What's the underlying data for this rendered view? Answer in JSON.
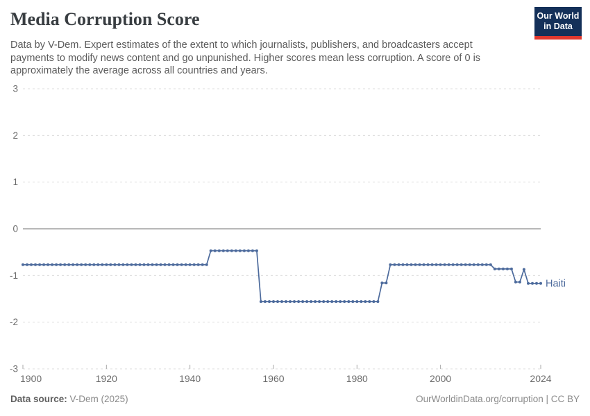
{
  "header": {
    "title": "Media Corruption Score",
    "subtitle": "Data by V-Dem. Expert estimates of the extent to which journalists, publishers, and broadcasters accept payments to modify news content and go unpunished. Higher scores mean less corruption. A score of 0 is approximately the average across all countries and years.",
    "logo": {
      "line1": "Our World",
      "line2": "in Data",
      "bg_color": "#143059",
      "bar_color": "#e0382e"
    }
  },
  "chart_data": {
    "type": "line",
    "title": "Media Corruption Score",
    "xlabel": "",
    "ylabel": "",
    "x_axis": {
      "min": 1900,
      "max": 2024,
      "ticks": [
        1900,
        1920,
        1940,
        1960,
        1980,
        2000,
        2024
      ]
    },
    "y_axis": {
      "min": -3,
      "max": 3,
      "ticks": [
        3,
        2,
        1,
        0,
        -1,
        -2,
        -3
      ]
    },
    "grid": "horizontal dashed, solid zero line",
    "legend": "end-of-line label",
    "markers": "one dot per year",
    "series": [
      {
        "name": "Haiti",
        "end_label": "Haiti",
        "color": "#4C6A9C",
        "segments": [
          {
            "from": 1900,
            "to": 1944,
            "value": -0.77
          },
          {
            "from": 1945,
            "to": 1956,
            "value": -0.47
          },
          {
            "from": 1957,
            "to": 1985,
            "value": -1.56
          },
          {
            "from": 1986,
            "to": 1987,
            "value": -1.16
          },
          {
            "from": 1988,
            "to": 2012,
            "value": -0.77
          },
          {
            "from": 2013,
            "to": 2017,
            "value": -0.86
          },
          {
            "from": 2018,
            "to": 2019,
            "value": -1.14
          },
          {
            "from": 2020,
            "to": 2020,
            "value": -0.87
          },
          {
            "from": 2021,
            "to": 2024,
            "value": -1.17
          }
        ]
      }
    ]
  },
  "footer": {
    "data_source_label": "Data source:",
    "data_source_value": "V-Dem (2025)",
    "attribution": "OurWorldinData.org/corruption | CC BY"
  }
}
